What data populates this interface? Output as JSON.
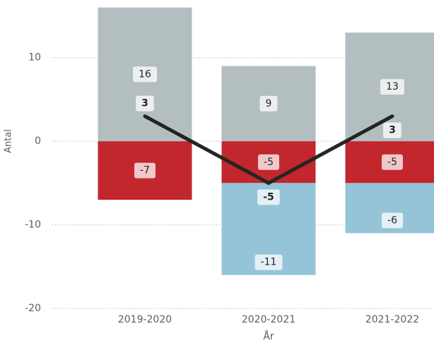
{
  "chart_data": {
    "type": "bar",
    "x_label": "År",
    "y_label": "Antal",
    "categories": [
      "2019-2020",
      "2020-2021",
      "2021-2022"
    ],
    "series": [
      {
        "color": "#b3bec1",
        "values": [
          16,
          9,
          13
        ]
      },
      {
        "color": "#c1272d",
        "values": [
          -7,
          -5,
          -5
        ]
      },
      {
        "color": "#95c4d8",
        "values": [
          null,
          -11,
          -6
        ]
      }
    ],
    "line": {
      "color": "#252423",
      "values": [
        3,
        -5,
        3
      ]
    },
    "ylim": [
      -20,
      16.9
    ],
    "yticks": [
      -20,
      -10,
      0,
      10
    ],
    "grid": true
  }
}
